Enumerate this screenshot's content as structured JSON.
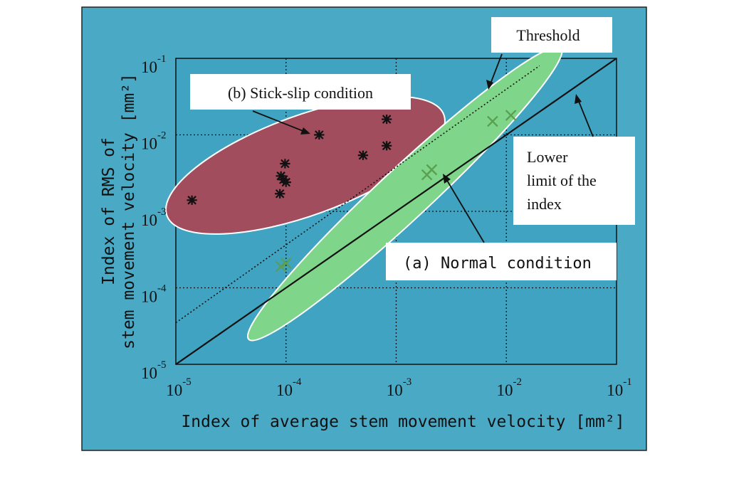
{
  "chart_data": {
    "type": "scatter",
    "x_scale": "log",
    "y_scale": "log",
    "xlim": [
      1e-05,
      0.1
    ],
    "ylim": [
      1e-05,
      0.1
    ],
    "grid": true,
    "xlabel": "Index of average stem movement velocity [mm²]",
    "ylabel_lines": [
      "Index of RMS of",
      "stem movement velocity [mm²]"
    ],
    "x_ticks": [
      {
        "base": "10",
        "exp": "-5",
        "value": 1e-05
      },
      {
        "base": "10",
        "exp": "-4",
        "value": 0.0001
      },
      {
        "base": "10",
        "exp": "-3",
        "value": 0.001
      },
      {
        "base": "10",
        "exp": "-2",
        "value": 0.01
      },
      {
        "base": "10",
        "exp": "-1",
        "value": 0.1
      }
    ],
    "y_ticks": [
      {
        "base": "10",
        "exp": "-5",
        "value": 1e-05
      },
      {
        "base": "10",
        "exp": "-4",
        "value": 0.0001
      },
      {
        "base": "10",
        "exp": "-3",
        "value": 0.001
      },
      {
        "base": "10",
        "exp": "-2",
        "value": 0.01
      },
      {
        "base": "10",
        "exp": "-1",
        "value": 0.1
      }
    ],
    "series": [
      {
        "marker": "star",
        "color": "#111111",
        "points": [
          {
            "x": 1.4e-05,
            "y": 0.0014
          },
          {
            "x": 8.8e-05,
            "y": 0.0017
          },
          {
            "x": 9e-05,
            "y": 0.0029
          },
          {
            "x": 9.5e-05,
            "y": 0.0026
          },
          {
            "x": 0.0001,
            "y": 0.0024
          },
          {
            "x": 9.8e-05,
            "y": 0.0042
          },
          {
            "x": 0.0002,
            "y": 0.01
          },
          {
            "x": 0.0005,
            "y": 0.0054
          },
          {
            "x": 0.00082,
            "y": 0.0072
          },
          {
            "x": 0.00082,
            "y": 0.016
          }
        ]
      },
      {
        "marker": "x",
        "color": "#5aa050",
        "points": [
          {
            "x": 9e-05,
            "y": 0.00019
          },
          {
            "x": 0.0001,
            "y": 0.00021
          },
          {
            "x": 0.0019,
            "y": 0.003
          },
          {
            "x": 0.0021,
            "y": 0.0035
          },
          {
            "x": 0.0075,
            "y": 0.015
          },
          {
            "x": 0.011,
            "y": 0.018
          }
        ]
      }
    ],
    "regions": [
      {
        "name": "stick-slip",
        "fill": "#a14d5e",
        "stroke": "#ffffff",
        "center": {
          "x": 0.00015,
          "y": 0.004
        }
      },
      {
        "name": "normal",
        "fill": "#7fd68a",
        "stroke": "#ffffff",
        "center": {
          "x": 0.0012,
          "y": 0.0017
        }
      }
    ],
    "lines": [
      {
        "name": "lower-limit",
        "style": "solid",
        "from": {
          "x": 1e-05,
          "y": 1e-05
        },
        "to": {
          "x": 0.1,
          "y": 0.1
        }
      },
      {
        "name": "threshold",
        "style": "dotted",
        "from": {
          "x": 1e-05,
          "y": 3.5e-05
        },
        "to": {
          "x": 0.02,
          "y": 0.08
        }
      }
    ],
    "annotations": [
      {
        "name": "stick-slip-label",
        "text": "(b) Stick-slip condition",
        "font": "serif"
      },
      {
        "name": "threshold-label",
        "text": "Threshold",
        "font": "serif"
      },
      {
        "name": "lower-limit-label",
        "lines": [
          "Lower",
          "limit of the",
          "index"
        ],
        "font": "serif"
      },
      {
        "name": "normal-label",
        "text": "(a) Normal condition",
        "font": "mono"
      }
    ],
    "colors": {
      "panel_background": "#4aaac6",
      "plot_background": "#3fa3c1",
      "text": "#111111",
      "label_box": "#ffffff"
    }
  }
}
